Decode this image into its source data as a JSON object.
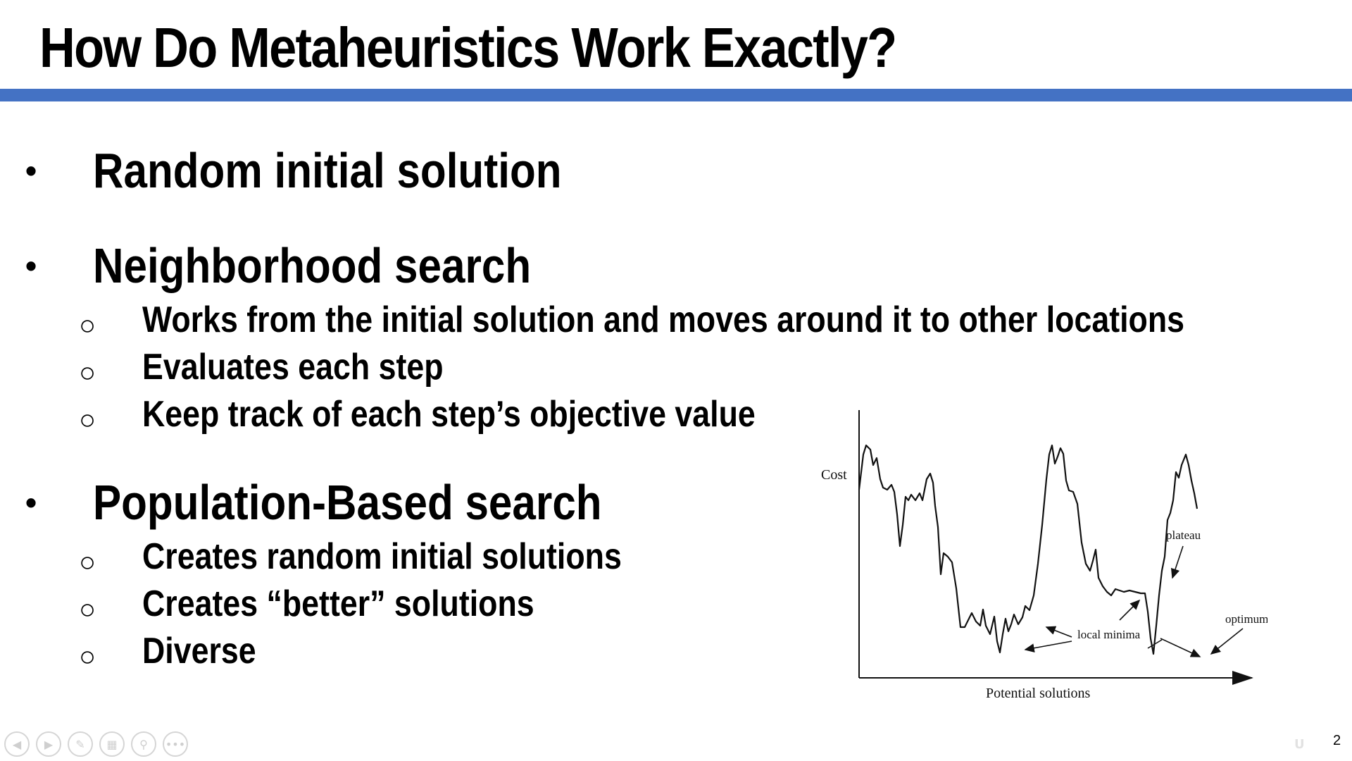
{
  "slide": {
    "title": "How Do Metaheuristics Work Exactly?",
    "accent_color": "#4472c4",
    "page_number": "2"
  },
  "bullets": [
    {
      "marker": "•",
      "text": "Random initial solution",
      "subs": []
    },
    {
      "marker": "•",
      "text": "Neighborhood search",
      "subs": [
        {
          "marker": "○",
          "text": "Works from the initial solution and moves around it to other locations"
        },
        {
          "marker": "○",
          "text": "Evaluates each step"
        },
        {
          "marker": "○",
          "text": "Keep track of each step’s objective value"
        }
      ]
    },
    {
      "marker": "•",
      "text": "Population-Based search",
      "subs": [
        {
          "marker": "○",
          "text": "Creates random initial solutions"
        },
        {
          "marker": "○",
          "text": "Creates “better” solutions"
        },
        {
          "marker": "○",
          "text": "Diverse"
        }
      ]
    }
  ],
  "figure": {
    "y_label": "Cost",
    "x_label": "Potential solutions",
    "annotations": {
      "plateau": "plateau",
      "local_minima": "local minima",
      "optimum": "optimum"
    }
  },
  "toolbar": {
    "icons": [
      "previous-icon",
      "next-icon",
      "pen-icon",
      "slides-icon",
      "zoom-icon",
      "more-icon"
    ]
  }
}
